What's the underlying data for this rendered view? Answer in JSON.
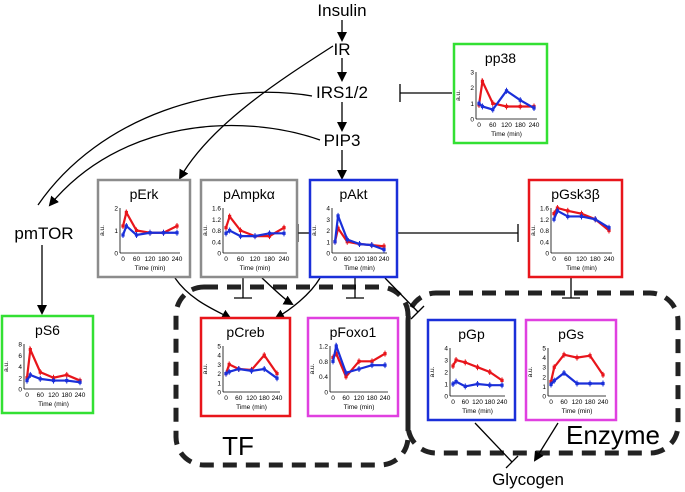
{
  "colors": {
    "red": "#e8151b",
    "blue": "#1a2fd9",
    "green": "#33e033",
    "gray": "#8c8c8c",
    "magenta": "#e040e0",
    "line": "#000000"
  },
  "nodes": {
    "insulin": "Insulin",
    "ir": "IR",
    "irs": "IRS1/2",
    "pip3": "PIP3",
    "pmtor": "pmTOR",
    "glycogen": "Glycogen"
  },
  "groups": {
    "tf": "TF",
    "enzyme": "Enzyme"
  },
  "axis": {
    "ylabel": "a.u.",
    "xlabel": "Time (min)"
  },
  "panels": [
    {
      "key": "pp38",
      "title": "pp38",
      "border": "green",
      "yticks": [
        "3",
        "2",
        "1",
        "0"
      ],
      "xticks": [
        "0",
        "60",
        "120",
        "180",
        "240"
      ],
      "series": {
        "red": [
          0.9,
          2.4,
          1.0,
          0.8,
          0.8,
          0.8
        ],
        "blue": [
          1.0,
          0.8,
          0.6,
          1.8,
          1.2,
          0.7
        ]
      }
    },
    {
      "key": "perk",
      "title": "pErk",
      "border": "gray",
      "yticks": [
        "2",
        "1",
        "0"
      ],
      "xticks": [
        "0",
        "60",
        "120",
        "180",
        "240"
      ],
      "series": {
        "red": [
          1.2,
          1.8,
          1.0,
          0.9,
          0.9,
          1.2
        ],
        "blue": [
          0.8,
          1.2,
          0.8,
          0.9,
          0.9,
          0.9
        ]
      }
    },
    {
      "key": "pampk",
      "title": "pAmpkα",
      "border": "gray",
      "yticks": [
        "1.6",
        "1.2",
        "0.8",
        "0.4",
        "0"
      ],
      "xticks": [
        "0",
        "60",
        "120",
        "180",
        "240"
      ],
      "series": {
        "red": [
          0.9,
          1.3,
          0.8,
          0.6,
          0.6,
          0.9
        ],
        "blue": [
          0.7,
          0.8,
          0.6,
          0.6,
          0.7,
          0.7
        ]
      }
    },
    {
      "key": "pakt",
      "title": "pAkt",
      "border": "blue",
      "yticks": [
        "4",
        "3",
        "2",
        "1",
        "0"
      ],
      "xticks": [
        "0",
        "60",
        "120",
        "180",
        "240"
      ],
      "series": {
        "red": [
          1.0,
          2.2,
          1.0,
          0.8,
          0.7,
          0.6
        ],
        "blue": [
          1.0,
          3.3,
          1.2,
          0.8,
          0.7,
          0.3
        ]
      }
    },
    {
      "key": "pgsk",
      "title": "pGsk3β",
      "border": "red",
      "yticks": [
        "1.6",
        "1.2",
        "0.8",
        "0.4",
        "0"
      ],
      "xticks": [
        "0",
        "60",
        "120",
        "180",
        "240"
      ],
      "series": {
        "red": [
          1.4,
          1.6,
          1.5,
          1.4,
          1.2,
          0.8
        ],
        "blue": [
          1.2,
          1.5,
          1.3,
          1.3,
          1.2,
          0.9
        ]
      }
    },
    {
      "key": "ps6",
      "title": "pS6",
      "border": "green",
      "yticks": [
        "8",
        "6",
        "4",
        "2",
        "0"
      ],
      "xticks": [
        "0",
        "60",
        "120",
        "180",
        "240"
      ],
      "series": {
        "red": [
          2.0,
          7.0,
          3.0,
          2.0,
          2.5,
          1.5
        ],
        "blue": [
          1.5,
          2.5,
          1.8,
          1.5,
          1.5,
          1.2
        ]
      }
    },
    {
      "key": "pcreb",
      "title": "pCreb",
      "border": "red",
      "yticks": [
        "5",
        "4",
        "3",
        "2",
        "1",
        "0"
      ],
      "xticks": [
        "0",
        "60",
        "120",
        "180",
        "240"
      ],
      "series": {
        "red": [
          2.0,
          3.0,
          2.5,
          2.4,
          4.0,
          2.0
        ],
        "blue": [
          2.0,
          2.2,
          2.5,
          2.3,
          2.5,
          1.5
        ]
      }
    },
    {
      "key": "pfoxo",
      "title": "pFoxo1",
      "border": "magenta",
      "yticks": [
        "1.2",
        "0.8",
        "0.4",
        "0"
      ],
      "xticks": [
        "0",
        "60",
        "120",
        "180",
        "240"
      ],
      "series": {
        "red": [
          0.9,
          1.0,
          0.4,
          0.8,
          0.8,
          1.0
        ],
        "blue": [
          0.8,
          1.2,
          0.5,
          0.6,
          0.7,
          0.7
        ]
      }
    },
    {
      "key": "pgp",
      "title": "pGp",
      "border": "blue",
      "yticks": [
        "4",
        "3",
        "2",
        "1",
        "0"
      ],
      "xticks": [
        "0",
        "60",
        "120",
        "180",
        "240"
      ],
      "series": {
        "red": [
          2.5,
          3.0,
          2.8,
          2.4,
          2.0,
          1.3
        ],
        "blue": [
          1.0,
          1.2,
          0.8,
          1.0,
          0.9,
          0.9
        ]
      }
    },
    {
      "key": "pgs",
      "title": "pGs",
      "border": "magenta",
      "yticks": [
        "5",
        "4",
        "3",
        "2",
        "1",
        "0"
      ],
      "xticks": [
        "0",
        "60",
        "120",
        "180",
        "240"
      ],
      "series": {
        "red": [
          1.5,
          3.0,
          4.3,
          4.0,
          4.2,
          2.2
        ],
        "blue": [
          1.2,
          1.6,
          2.4,
          1.3,
          1.3,
          1.3
        ]
      }
    }
  ]
}
